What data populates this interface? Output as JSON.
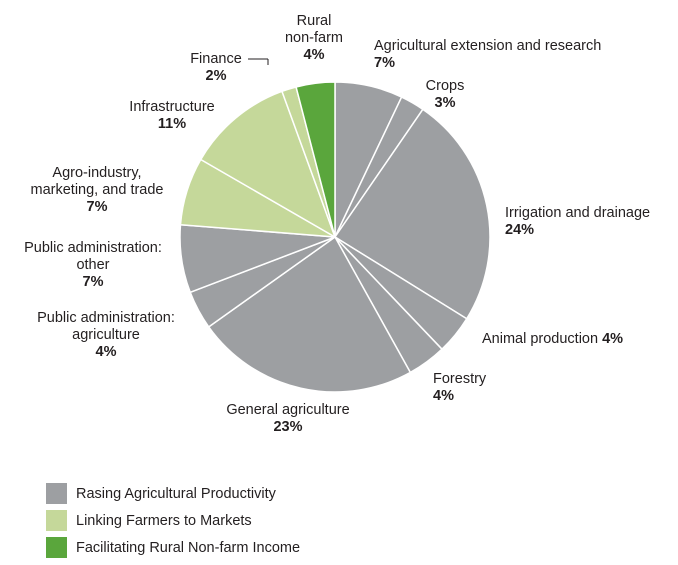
{
  "chart_data": {
    "type": "pie",
    "title": "",
    "start_angle_deg": 0,
    "direction": "clockwise",
    "slices": [
      {
        "label": "Agricultural extension and research",
        "pct_label": "7%",
        "value": 7,
        "group": 0
      },
      {
        "label": "Crops",
        "pct_label": "3%",
        "value": 2.5,
        "group": 0
      },
      {
        "label": "Irrigation and drainage",
        "pct_label": "24%",
        "value": 24,
        "group": 0
      },
      {
        "label": "Animal production",
        "pct_label": "4%",
        "value": 4,
        "group": 0
      },
      {
        "label": "Forestry",
        "pct_label": "4%",
        "value": 4,
        "group": 0
      },
      {
        "label": "General agriculture",
        "pct_label": "23%",
        "value": 23,
        "group": 0
      },
      {
        "label": "Public administration: agriculture",
        "pct_label": "4%",
        "value": 4,
        "group": 0
      },
      {
        "label": "Public administration: other",
        "pct_label": "7%",
        "value": 7,
        "group": 0
      },
      {
        "label": "Agro-industry, marketing, and trade",
        "pct_label": "7%",
        "value": 7,
        "group": 1
      },
      {
        "label": "Infrastructure",
        "pct_label": "11%",
        "value": 11,
        "group": 1
      },
      {
        "label": "Finance",
        "pct_label": "2%",
        "value": 1.5,
        "group": 1
      },
      {
        "label": "Rural non-farm",
        "pct_label": "4%",
        "value": 4,
        "group": 2
      }
    ],
    "legend": [
      {
        "label": "Rasing Agricultural Productivity",
        "color": "#9d9fa2"
      },
      {
        "label": "Linking Farmers to Markets",
        "color": "#c5d89a"
      },
      {
        "label": "Facilitating Rural Non-farm Income",
        "color": "#5aa63c"
      }
    ],
    "legend_position": "bottom-left"
  },
  "labels": {
    "ext": {
      "l1": "Agricultural extension and research",
      "pct": "7%"
    },
    "crops": {
      "l1": "Crops",
      "pct": "3%"
    },
    "irr": {
      "l1": "Irrigation and drainage",
      "pct": "24%"
    },
    "animal": {
      "l1": "Animal production",
      "pct": "4%"
    },
    "forestry": {
      "l1": "Forestry",
      "pct": "4%"
    },
    "general": {
      "l1": "General agriculture",
      "pct": "23%"
    },
    "pubagri": {
      "l1": "Public administration:",
      "l2": "agriculture",
      "pct": "4%"
    },
    "pubother": {
      "l1": "Public administration:",
      "l2": "other",
      "pct": "7%"
    },
    "agro": {
      "l1": "Agro-industry,",
      "l2": "marketing, and trade",
      "pct": "7%"
    },
    "infra": {
      "l1": "Infrastructure",
      "pct": "11%"
    },
    "finance": {
      "l1": "Finance",
      "pct": "2%"
    },
    "rural": {
      "l1": "Rural",
      "l2": "non-farm",
      "pct": "4%"
    }
  }
}
